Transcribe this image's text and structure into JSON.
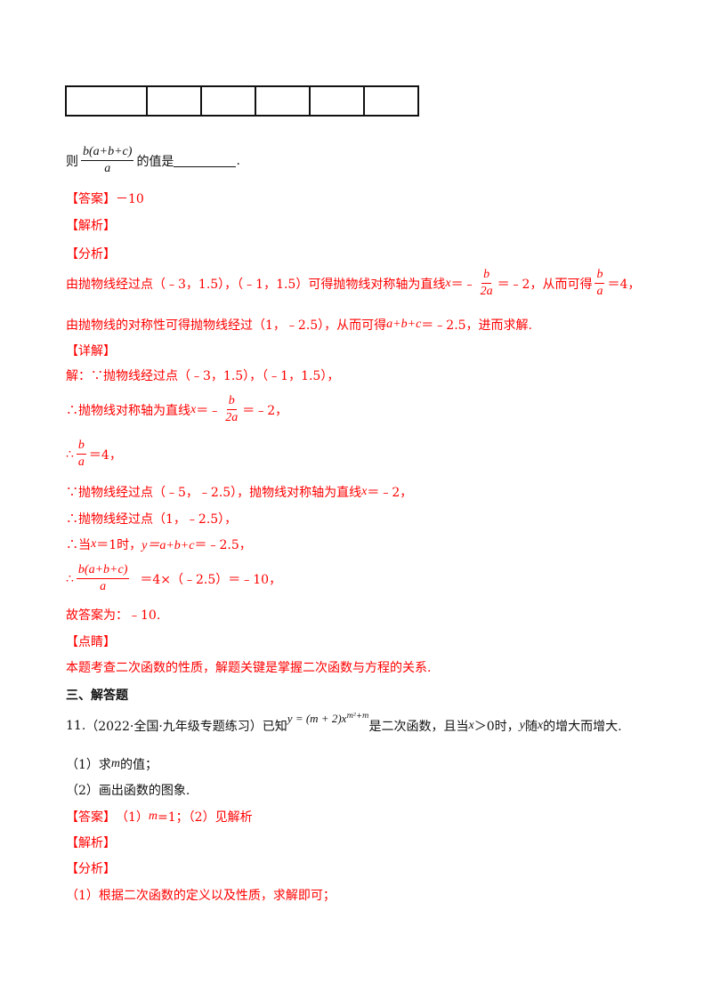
{
  "table": {
    "columns": 6
  },
  "q10": {
    "prefix": "则",
    "frac_num": "b(a+b+c)",
    "frac_den": "a",
    "suffix": "的值是",
    "end": "."
  },
  "answer1": {
    "tag": "【答案】",
    "value": "－10"
  },
  "jiexi1": "【解析】",
  "fenxi1": "【分析】",
  "fenxi1_text": {
    "a": "由抛物线经过点（﹣3，1.5），（﹣1，1.5）可得抛物线对称轴为直线",
    "x": "x",
    "b": "＝﹣",
    "num": "b",
    "den": "2a",
    "c": "＝﹣2，从而可得",
    "num2": "b",
    "den2": "a",
    "d": "＝4，"
  },
  "fenxi1_text2": {
    "a": "由抛物线的对称性可得抛物线经过（1，﹣2.5），从而可得",
    "expr": "a+b+c",
    "b": "＝﹣2.5，进而求解."
  },
  "xiangjie1": "【详解】",
  "sol": {
    "l1": "解：∵抛物线经过点（﹣3，1.5），（﹣1，1.5），",
    "l2a": "∴抛物线对称轴为直线",
    "l2x": "x",
    "l2b": "＝﹣",
    "l2num": "b",
    "l2den": "2a",
    "l2c": "＝﹣2，",
    "l3a": "∴",
    "l3num": "b",
    "l3den": "a",
    "l3b": "＝4，",
    "l4a": "∵抛物线经过点（﹣5，﹣2.5），抛物线对称轴为直线",
    "l4x": "x",
    "l4b": "＝﹣2，",
    "l5": "∴抛物线经过点（1，﹣2.5），",
    "l6a": "∴当",
    "l6x": "x",
    "l6b": "＝1时，",
    "l6y": "y＝a+b+c",
    "l6c": "＝﹣2.5，",
    "l7a": "∴",
    "l7num": "b(a+b+c)",
    "l7den": "a",
    "l7b": "＝4×（﹣2.5）＝﹣10，",
    "l8": "故答案为：﹣10."
  },
  "dianjing": "【点睛】",
  "dianjing_text": "本题考查二次函数的性质，解题关键是掌握二次函数与方程的关系.",
  "section3": "三、解答题",
  "q11": {
    "num": "11.",
    "source": "（2022·全国·九年级专题练习）已知",
    "formula": "y = (m + 2)x",
    "exp": "m²+m",
    "a": "是二次函数，且当",
    "x": "x",
    "b": "＞0时，",
    "y": "y",
    "c": "随",
    "x2": "x",
    "d": "的增大而增大.",
    "p1a": "（1）求",
    "p1m": "m",
    "p1b": "的值；",
    "p2": "（2）画出函数的图象."
  },
  "answer2": {
    "tag": "【答案】",
    "a": "（1）",
    "m": "m",
    "b": "=1；（2）见解析"
  },
  "jiexi2": "【解析】",
  "fenxi2": "【分析】",
  "fenxi2_text": "（1）根据二次函数的定义以及性质，求解即可；"
}
